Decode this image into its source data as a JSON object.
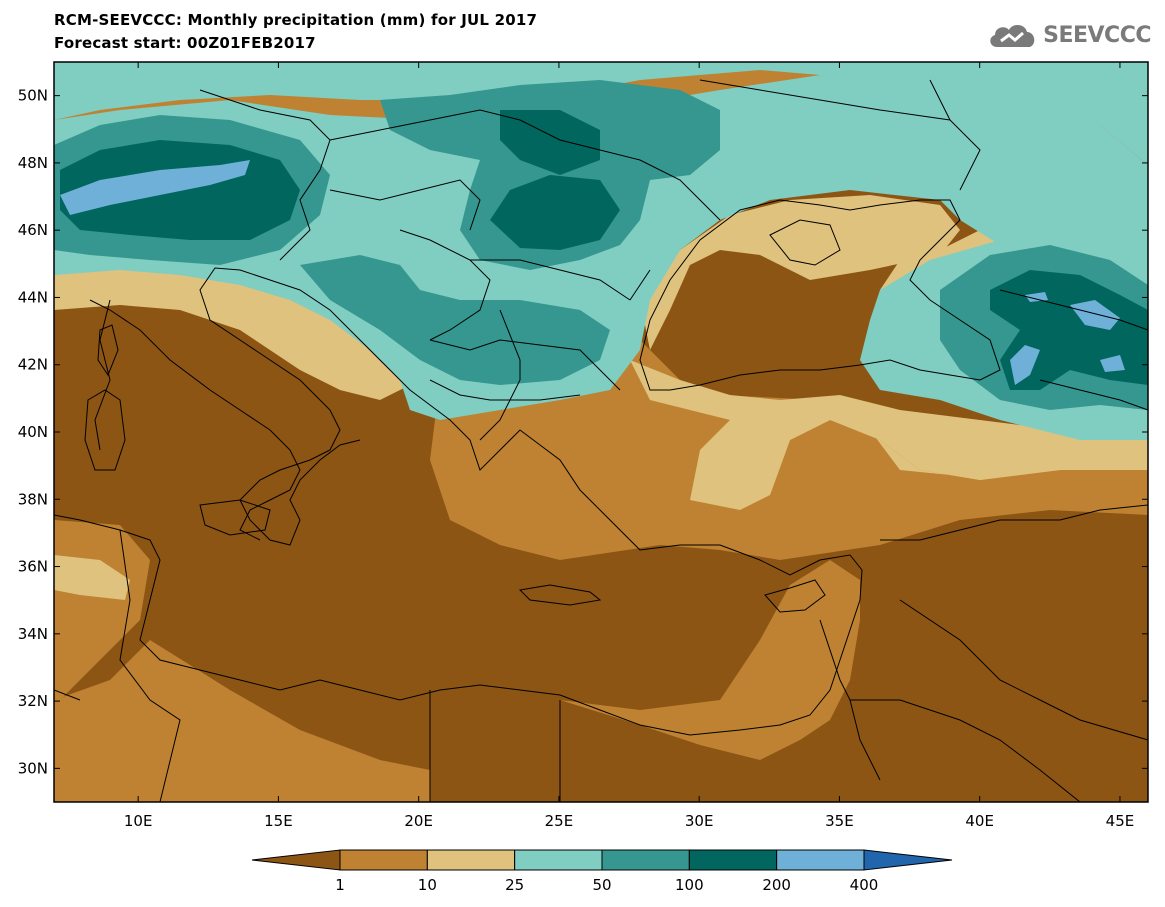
{
  "title": "RCM-SEEVCCC: Monthly precipitation (mm) for JUL 2017",
  "subtitle": "Forecast start: 00Z01FEB2017",
  "logo": {
    "icon": "cloud-icon",
    "text": "SEEVCCC",
    "color": "#7a7a7a"
  },
  "map": {
    "lon_range": [
      7,
      46
    ],
    "lat_range": [
      29,
      51
    ],
    "lon_ticks": [
      {
        "value": 10,
        "label": "10E"
      },
      {
        "value": 15,
        "label": "15E"
      },
      {
        "value": 20,
        "label": "20E"
      },
      {
        "value": 25,
        "label": "25E"
      },
      {
        "value": 30,
        "label": "30E"
      },
      {
        "value": 35,
        "label": "35E"
      },
      {
        "value": 40,
        "label": "40E"
      },
      {
        "value": 45,
        "label": "45E"
      }
    ],
    "lat_ticks": [
      {
        "value": 30,
        "label": "30N"
      },
      {
        "value": 32,
        "label": "32N"
      },
      {
        "value": 34,
        "label": "34N"
      },
      {
        "value": 36,
        "label": "36N"
      },
      {
        "value": 38,
        "label": "38N"
      },
      {
        "value": 40,
        "label": "40N"
      },
      {
        "value": 42,
        "label": "42N"
      },
      {
        "value": 44,
        "label": "44N"
      },
      {
        "value": 46,
        "label": "46N"
      },
      {
        "value": 48,
        "label": "48N"
      },
      {
        "value": 50,
        "label": "50N"
      }
    ]
  },
  "legend": {
    "colors": [
      "#8c5514",
      "#be8232",
      "#dfc27d",
      "#80cdc1",
      "#35978f",
      "#01665e",
      "#6fb0d8",
      "#2166ac"
    ],
    "labels": [
      "1",
      "10",
      "25",
      "50",
      "100",
      "200",
      "400"
    ]
  }
}
